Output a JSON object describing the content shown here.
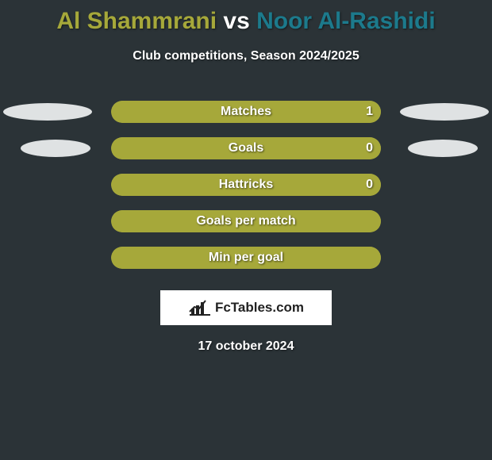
{
  "title": {
    "player1": "Al Shammrani",
    "vs": "vs",
    "player2": "Noor Al-Rashidi",
    "player1_color": "#a6a83a",
    "player2_color": "#1c7a8c"
  },
  "subtitle": "Club competitions, Season 2024/2025",
  "colors": {
    "background": "#2b3337",
    "bar_primary": "#a6a83a",
    "bar_secondary": "#1c7a8c",
    "ellipse": "#dfe2e3",
    "text": "#ffffff"
  },
  "stats": [
    {
      "label": "Matches",
      "value": "1",
      "left_pct": 100,
      "left_color": "#a6a83a",
      "bg_color": "#a6a83a",
      "show_value": true,
      "show_ellipses": true,
      "ellipse_variant": "wide"
    },
    {
      "label": "Goals",
      "value": "0",
      "left_pct": 100,
      "left_color": "#a6a83a",
      "bg_color": "#a6a83a",
      "show_value": true,
      "show_ellipses": true,
      "ellipse_variant": "narrow"
    },
    {
      "label": "Hattricks",
      "value": "0",
      "left_pct": 100,
      "left_color": "#a6a83a",
      "bg_color": "#a6a83a",
      "show_value": true,
      "show_ellipses": false,
      "ellipse_variant": ""
    },
    {
      "label": "Goals per match",
      "value": "",
      "left_pct": 100,
      "left_color": "#a6a83a",
      "bg_color": "#a6a83a",
      "show_value": false,
      "show_ellipses": false,
      "ellipse_variant": ""
    },
    {
      "label": "Min per goal",
      "value": "",
      "left_pct": 100,
      "left_color": "#a6a83a",
      "bg_color": "#a6a83a",
      "show_value": false,
      "show_ellipses": false,
      "ellipse_variant": ""
    }
  ],
  "logo": {
    "text": "FcTables.com"
  },
  "date": "17 october 2024"
}
